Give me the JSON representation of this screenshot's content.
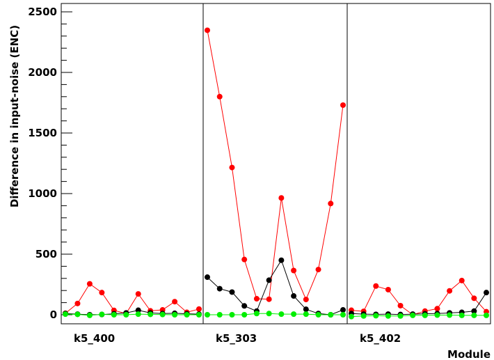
{
  "chart_data": {
    "type": "line",
    "title": "",
    "xlabel": "Module",
    "ylabel": "Difference in input-noise (ENC)",
    "ylim": [
      -80,
      2600
    ],
    "yticks": [
      0,
      500,
      1000,
      1500,
      2000,
      2500
    ],
    "yticklabels": [
      "0",
      "500",
      "1000",
      "1500",
      "2000",
      "2500"
    ],
    "grid": false,
    "legend": "none",
    "panels": [
      {
        "category": "k5_400",
        "series": [
          {
            "color": "#ff0000",
            "values": [
              12,
              93,
              255,
              183,
              36,
              10,
              172,
              32,
              40,
              108,
              20,
              47
            ]
          },
          {
            "color": "#000000",
            "values": [
              10,
              5,
              0,
              2,
              8,
              15,
              37,
              15,
              10,
              12,
              8,
              5
            ]
          },
          {
            "color": "#00ee00",
            "values": [
              5,
              3,
              -5,
              3,
              0,
              0,
              5,
              3,
              2,
              0,
              0,
              0
            ]
          }
        ]
      },
      {
        "category": "k5_303",
        "series": [
          {
            "color": "#ff0000",
            "values": [
              2348,
              1800,
              1215,
              456,
              132,
              128,
              964,
              365,
              126,
              373,
              918,
              1730
            ]
          },
          {
            "color": "#000000",
            "values": [
              310,
              215,
              187,
              73,
              30,
              285,
              450,
              155,
              45,
              10,
              0,
              40
            ]
          },
          {
            "color": "#00ee00",
            "values": [
              0,
              0,
              0,
              0,
              10,
              10,
              5,
              5,
              5,
              0,
              0,
              0
            ]
          }
        ]
      },
      {
        "category": "k5_402",
        "series": [
          {
            "color": "#ff0000",
            "values": [
              37,
              28,
              237,
              207,
              75,
              0,
              30,
              50,
              197,
              282,
              136,
              25
            ]
          },
          {
            "color": "#000000",
            "values": [
              10,
              5,
              3,
              5,
              2,
              5,
              8,
              10,
              15,
              20,
              30,
              183
            ]
          },
          {
            "color": "#00ee00",
            "values": [
              -15,
              -10,
              -8,
              -10,
              -10,
              -5,
              -5,
              -3,
              -3,
              -5,
              -5,
              -5
            ]
          }
        ]
      }
    ]
  }
}
